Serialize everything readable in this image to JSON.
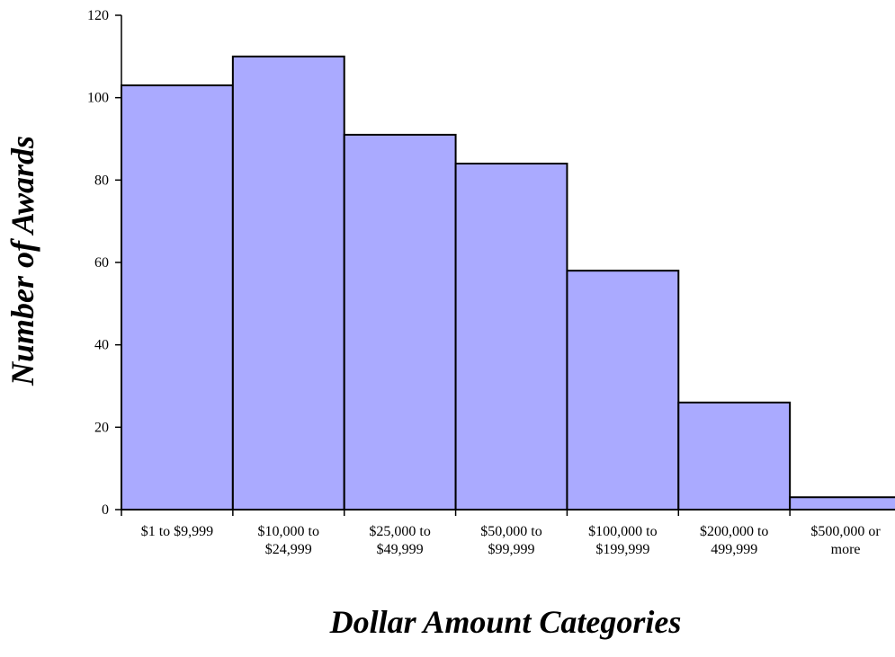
{
  "chart_data": {
    "type": "bar",
    "title": "",
    "xlabel": "Dollar Amount Categories",
    "ylabel": "Number of Awards",
    "categories": [
      [
        "$1 to $9,999"
      ],
      [
        "$10,000 to",
        "$24,999"
      ],
      [
        "$25,000 to",
        "$49,999"
      ],
      [
        "$50,000 to",
        "$99,999"
      ],
      [
        "$100,000 to",
        "$199,999"
      ],
      [
        "$200,000 to",
        "499,999"
      ],
      [
        "$500,000 or",
        "more"
      ]
    ],
    "values": [
      103,
      110,
      91,
      84,
      58,
      26,
      3
    ],
    "ylim": [
      0,
      120
    ],
    "yticks": [
      0,
      20,
      40,
      60,
      80,
      100,
      120
    ],
    "bar_color": "#aaaaff",
    "grid": false,
    "legend": "none"
  }
}
